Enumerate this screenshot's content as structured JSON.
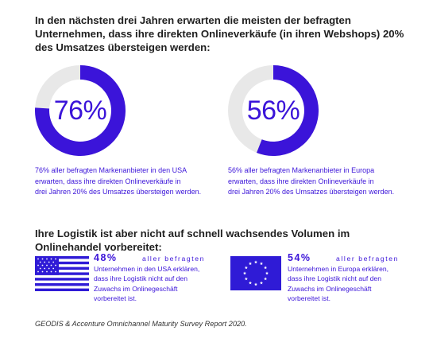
{
  "headline": "In den nächsten drei Jahren erwarten die meisten der befragten Unternehmen, dass ihre direkten Onlineverkäufe (in ihren Webshops) 20% des Umsatzes übersteigen werden:",
  "chart_data": [
    {
      "type": "pie",
      "values": [
        76,
        24
      ],
      "center_label": "76%",
      "colors": [
        "#3b14d9",
        "#e8e8e8"
      ],
      "caption": [
        "76% aller befragten Markenanbieter in den USA",
        "erwarten, dass ihre direkten Onlineverkäufe in",
        "drei Jahren 20% des Umsatzes übersteigen werden."
      ]
    },
    {
      "type": "pie",
      "values": [
        56,
        44
      ],
      "center_label": "56%",
      "colors": [
        "#3b14d9",
        "#e8e8e8"
      ],
      "caption": [
        "56% aller befragten Markenanbieter in Europa",
        "erwarten, dass ihre direkten Onlineverkäufe in",
        "drei Jahren 20% des Umsatzes übersteigen werden."
      ]
    }
  ],
  "headline2": "Ihre Logistik ist aber nicht auf schnell wachsendes Volumen im Onlinehandel vorbereitet:",
  "stats": [
    {
      "flag": "usa-flag-icon",
      "value": "48%",
      "first_rest": "aller befragten",
      "lines": [
        "Unternehmen in den USA erklären,",
        "dass ihre Logistik nicht auf den",
        "Zuwachs im Onlinegeschäft",
        "vorbereitet ist."
      ]
    },
    {
      "flag": "eu-flag-icon",
      "value": "54%",
      "first_rest": "aller befragten",
      "lines": [
        "Unternehmen in Europa erklären,",
        "dass ihre Logistik nicht auf den",
        "Zuwachs im Onlinegeschäft",
        "vorbereitet ist."
      ]
    }
  ],
  "source": "GEODIS & Accenture Omnichannel Maturity Survey Report 2020.",
  "colors": {
    "accent": "#3b14d9",
    "track": "#e8e8e8",
    "flag_blue": "#2f1bd6"
  }
}
